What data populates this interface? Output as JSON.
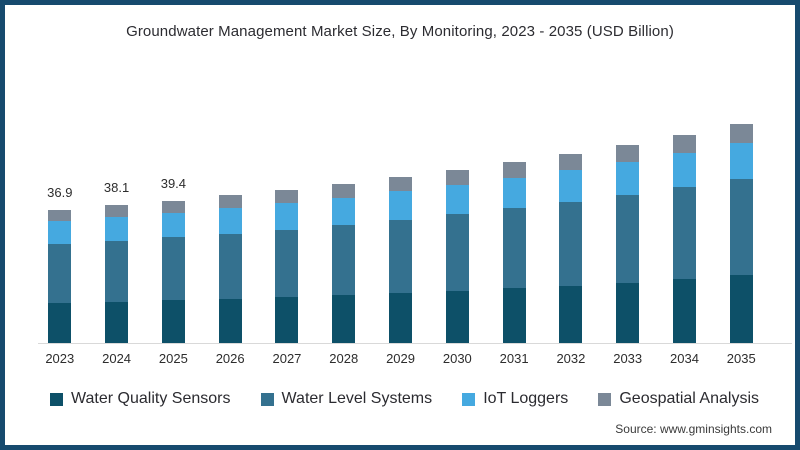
{
  "source_note": "Source: www.gminsights.com",
  "chart_data": {
    "type": "bar",
    "stacked": true,
    "title": "Groundwater Management Market Size, By Monitoring, 2023 - 2035 (USD Billion)",
    "xlabel": "",
    "ylabel": "USD Billion",
    "ylim": [
      0,
      65
    ],
    "grid": false,
    "legend_position": "bottom",
    "categories": [
      "2023",
      "2024",
      "2025",
      "2026",
      "2027",
      "2028",
      "2029",
      "2030",
      "2031",
      "2032",
      "2033",
      "2034",
      "2035"
    ],
    "series": [
      {
        "name": "Water Quality Sensors",
        "color": "#0d5068",
        "values": [
          11.0,
          11.4,
          11.8,
          12.2,
          12.7,
          13.2,
          13.8,
          14.5,
          15.2,
          15.9,
          16.7,
          17.6,
          18.7
        ]
      },
      {
        "name": "Water Level Systems",
        "color": "#34718f",
        "values": [
          16.3,
          16.8,
          17.4,
          18.0,
          18.7,
          19.4,
          20.3,
          21.2,
          22.1,
          23.1,
          24.1,
          25.4,
          26.6
        ]
      },
      {
        "name": "IoT Loggers",
        "color": "#45a9e0",
        "values": [
          6.4,
          6.6,
          6.8,
          7.1,
          7.3,
          7.6,
          7.9,
          8.0,
          8.4,
          8.8,
          9.2,
          9.6,
          10.0
        ]
      },
      {
        "name": "Geospatial Analysis",
        "color": "#7b8897",
        "values": [
          3.2,
          3.3,
          3.4,
          3.5,
          3.6,
          3.8,
          3.9,
          4.1,
          4.3,
          4.5,
          4.7,
          5.0,
          5.2
        ]
      }
    ],
    "totals": [
      36.9,
      38.1,
      39.4,
      40.8,
      42.3,
      44.0,
      45.9,
      47.8,
      50.0,
      52.3,
      54.7,
      57.6,
      60.5
    ],
    "bar_total_labels": [
      "36.9",
      "38.1",
      "39.4",
      "",
      "",
      "",
      "",
      "",
      "",
      "",
      "",
      "",
      ""
    ]
  },
  "colors": {
    "frame_border": "#164a6e",
    "axis_line": "#d9d9d9",
    "text": "#2d2d2d"
  }
}
